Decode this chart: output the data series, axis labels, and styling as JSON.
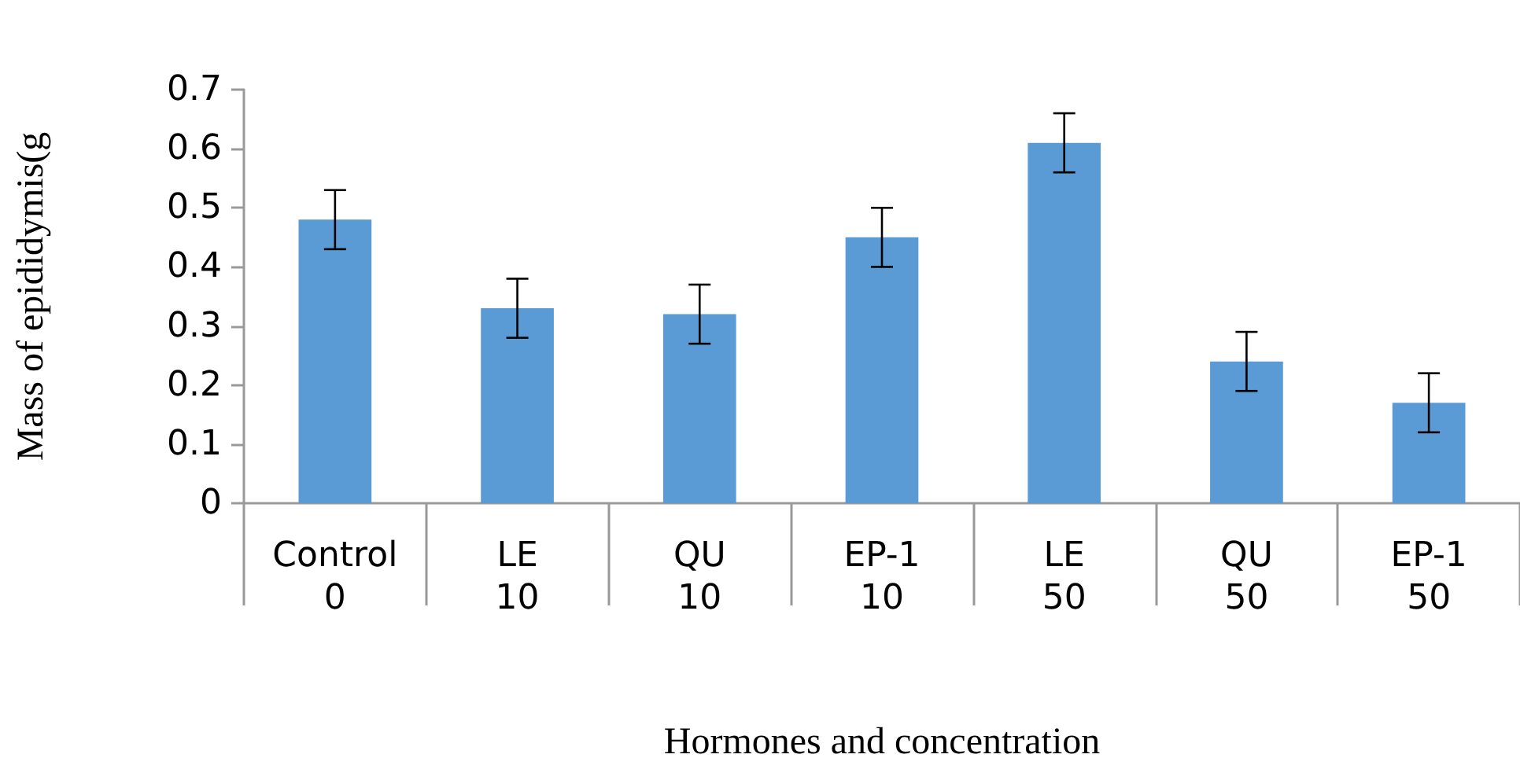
{
  "chart_data": {
    "type": "bar",
    "xlabel": "Hormones and concentration",
    "ylabel": "Mass of epididymis(g",
    "categories": [
      "Control\n0",
      "LE\n10",
      "QU\n10",
      "EP-1\n10",
      "LE\n50",
      "QU\n50",
      "EP-1\n50"
    ],
    "values": [
      0.48,
      0.33,
      0.32,
      0.45,
      0.61,
      0.24,
      0.17
    ],
    "errors": [
      0.05,
      0.05,
      0.05,
      0.05,
      0.05,
      0.05,
      0.05
    ],
    "color": "#5b9bd5",
    "ylim": [
      0,
      0.7
    ],
    "yticks": [
      0,
      0.1,
      0.2,
      0.3,
      0.4,
      0.5,
      0.6,
      0.7
    ],
    "grid": false
  }
}
